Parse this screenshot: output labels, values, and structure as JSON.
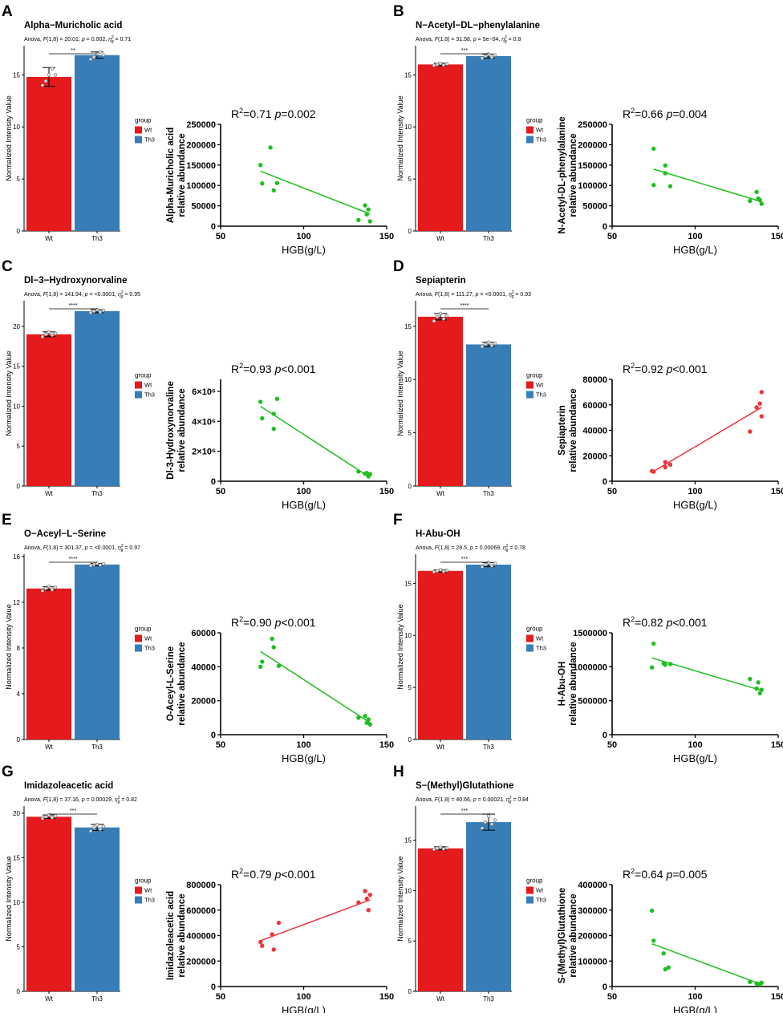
{
  "colors": {
    "wt": "#e41a1c",
    "th3": "#377eb8",
    "green": "#1fbf1f",
    "red": "#f0333d"
  },
  "legend": {
    "title": "group",
    "items": [
      "Wt",
      "Th3"
    ]
  },
  "ylabel": "Normalized Intensity Value",
  "xlabel_scatter": "HGB(g/L)",
  "chart_data": [
    {
      "panel": "A",
      "type": "bar",
      "title": "Alpha−Muricholic acid",
      "anova": "Anova, F(1,8) = 20.01, p = 0.002, η²g = 0.71",
      "anova_pre": "Anova, ",
      "anova_post": "(1,8) = 20.01, ",
      "anova_p": " = 0.002,  ",
      "anova_eta": " = 0.71",
      "categories": [
        "Wt",
        "Th3"
      ],
      "values": [
        14.8,
        16.9
      ],
      "errors": [
        0.9,
        0.3
      ],
      "sig": "**",
      "ylim": [
        0,
        17.8
      ],
      "yticks": [
        0,
        5,
        10,
        15
      ],
      "points": [
        [
          14.0,
          14.4,
          15.0,
          15.6,
          15.0
        ],
        [
          16.5,
          16.7,
          17.0,
          17.2,
          16.9
        ]
      ],
      "scatter": {
        "type": "scatter",
        "ylabel1": "Alpha-Muricholic acid",
        "ylabel2": "relative abundance",
        "r2_value": "=0.71",
        "p_value": "=0.002",
        "color": "#1fbf1f",
        "x": [
          74,
          75,
          80,
          82,
          84,
          133,
          137,
          138,
          139,
          140
        ],
        "y": [
          150000,
          105000,
          193000,
          88000,
          106000,
          15000,
          51000,
          29000,
          41000,
          12000
        ],
        "line": [
          [
            74,
            135000
          ],
          [
            140,
            30000
          ]
        ],
        "xlim": [
          50,
          150
        ],
        "xticks": [
          "50",
          "100",
          "150"
        ],
        "xtickvals": [
          50,
          100,
          150
        ],
        "ylim": [
          0,
          250000
        ],
        "yticks": [
          "0",
          "50000",
          "100000",
          "150000",
          "200000",
          "250000"
        ],
        "ytickvals": [
          0,
          50000,
          100000,
          150000,
          200000,
          250000
        ]
      }
    },
    {
      "panel": "B",
      "type": "bar",
      "title": "N−Acetyl−DL−phenylalanine",
      "anova": "Anova, F(1,8) = 31.58, p = 5e−04, η²g = 0.8",
      "anova_pre": "Anova, ",
      "anova_post": "(1,8) = 31.58, ",
      "anova_p": " = 5e−04,  ",
      "anova_eta": " = 0.8",
      "categories": [
        "Wt",
        "Th3"
      ],
      "values": [
        16.0,
        16.8
      ],
      "errors": [
        0.12,
        0.2
      ],
      "sig": "***",
      "ylim": [
        0,
        17.8
      ],
      "yticks": [
        0,
        5,
        10,
        15
      ],
      "points": [
        [
          15.9,
          16.0,
          16.1,
          15.95,
          16.05
        ],
        [
          16.6,
          16.8,
          17.0,
          16.7,
          16.9
        ]
      ],
      "scatter": {
        "type": "scatter",
        "ylabel1": "N-Acetyl-DL-phenylalanine",
        "ylabel2": "relative abundance",
        "r2_value": "=0.66",
        "p_value": "=0.004",
        "color": "#1fbf1f",
        "x": [
          75,
          75,
          82,
          82,
          85,
          133,
          137,
          138,
          139,
          140
        ],
        "y": [
          190000,
          101000,
          149000,
          130000,
          98000,
          62000,
          84000,
          68000,
          64000,
          55000
        ],
        "line": [
          [
            75,
            140000
          ],
          [
            140,
            60000
          ]
        ],
        "xlim": [
          50,
          150
        ],
        "xticks": [
          "50",
          "100",
          "150"
        ],
        "xtickvals": [
          50,
          100,
          150
        ],
        "ylim": [
          0,
          250000
        ],
        "yticks": [
          "0",
          "50000",
          "100000",
          "150000",
          "200000",
          "250000"
        ],
        "ytickvals": [
          0,
          50000,
          100000,
          150000,
          200000,
          250000
        ]
      }
    },
    {
      "panel": "C",
      "type": "bar",
      "title": "Dl−3−Hydroxynorvaline",
      "anova": "Anova, F(1,8) = 141.94, p = <0.0001, η²g = 0.95",
      "anova_pre": "Anova, ",
      "anova_post": "(1,8) = 141.94, ",
      "anova_p": " = <0.0001,  ",
      "anova_eta": " = 0.95",
      "categories": [
        "Wt",
        "Th3"
      ],
      "values": [
        19.0,
        21.9
      ],
      "errors": [
        0.3,
        0.2
      ],
      "sig": "****",
      "ylim": [
        0,
        23.2
      ],
      "yticks": [
        0,
        5,
        10,
        15,
        20
      ],
      "points": [
        [
          18.7,
          19.0,
          19.3,
          18.9,
          19.1
        ],
        [
          21.7,
          21.9,
          22.1,
          21.8,
          22.0
        ]
      ],
      "scatter": {
        "type": "scatter",
        "ylabel1": "Dl-3-Hydroxynorvaline",
        "ylabel2": "relative abundance",
        "r2_value": "=0.93",
        "p_value": "<0.001",
        "color": "#1fbf1f",
        "x": [
          74,
          75,
          82,
          82,
          84,
          133,
          137,
          138,
          139,
          140
        ],
        "y": [
          5300000,
          4200000,
          4500000,
          3500000,
          5500000,
          650000,
          500000,
          550000,
          320000,
          480000
        ],
        "line": [
          [
            74,
            5000000
          ],
          [
            140,
            250000
          ]
        ],
        "xlim": [
          50,
          150
        ],
        "xticks": [
          "50",
          "100",
          "150"
        ],
        "xtickvals": [
          50,
          100,
          150
        ],
        "ylim": [
          0,
          6800000
        ],
        "yticks": [
          "0",
          "2×10⁶",
          "4×10⁶",
          "6×10⁶"
        ],
        "ytickvals": [
          0,
          2000000,
          4000000,
          6000000
        ]
      }
    },
    {
      "panel": "D",
      "type": "bar",
      "title": "Sepiapterin",
      "anova": "Anova, F(1,8) = 111.27, p = <0.0001, η²g = 0.93",
      "anova_pre": "Anova, ",
      "anova_post": "(1,8) = 111.27, ",
      "anova_p": " = <0.0001,  ",
      "anova_eta": " = 0.93",
      "categories": [
        "Wt",
        "Th3"
      ],
      "values": [
        15.9,
        13.3
      ],
      "errors": [
        0.3,
        0.2
      ],
      "sig": "****",
      "ylim": [
        0,
        17.4
      ],
      "yticks": [
        0,
        5,
        10,
        15
      ],
      "points": [
        [
          15.5,
          15.9,
          16.2,
          15.7,
          16.0
        ],
        [
          13.1,
          13.3,
          13.5,
          13.2,
          13.4
        ]
      ],
      "scatter": {
        "type": "scatter",
        "ylabel1": "Sepiapterin",
        "ylabel2": "relative abundance",
        "r2_value": "=0.92",
        "p_value": "<0.001",
        "color": "#f0333d",
        "x": [
          74,
          75,
          82,
          82,
          85,
          133,
          137,
          139,
          140,
          140
        ],
        "y": [
          8000,
          7500,
          11000,
          15000,
          13000,
          39000,
          58000,
          61000,
          70000,
          51000
        ],
        "line": [
          [
            74,
            7000
          ],
          [
            140,
            58000
          ]
        ],
        "xlim": [
          50,
          150
        ],
        "xticks": [
          "50",
          "100",
          "150"
        ],
        "xtickvals": [
          50,
          100,
          150
        ],
        "ylim": [
          0,
          80000
        ],
        "yticks": [
          "0",
          "20000",
          "40000",
          "60000",
          "80000"
        ],
        "ytickvals": [
          0,
          20000,
          40000,
          60000,
          80000
        ]
      }
    },
    {
      "panel": "E",
      "type": "bar",
      "title": "O−Aceyl−L−Serine",
      "anova": "Anova, F(1,8) = 301.37, p = <0.0001, η²g = 0.97",
      "anova_pre": "Anova, ",
      "anova_post": "(1,8) = 301.37, ",
      "anova_p": " = <0.0001,  ",
      "anova_eta": " = 0.97",
      "categories": [
        "Wt",
        "Th3"
      ],
      "values": [
        13.2,
        15.3
      ],
      "errors": [
        0.15,
        0.1
      ],
      "sig": "****",
      "ylim": [
        0,
        16.2
      ],
      "yticks": [
        0,
        4,
        8,
        12,
        16
      ],
      "points": [
        [
          13.0,
          13.2,
          13.4,
          13.1,
          13.3
        ],
        [
          15.2,
          15.3,
          15.4,
          15.25,
          15.35
        ]
      ],
      "scatter": {
        "type": "scatter",
        "ylabel1": "O-Aceyl-L-Serine",
        "ylabel2": "relative abundance",
        "r2_value": "=0.90",
        "p_value": "<0.001",
        "color": "#1fbf1f",
        "x": [
          74,
          75,
          81,
          82,
          85,
          133,
          137,
          138,
          139,
          140
        ],
        "y": [
          40000,
          43000,
          56500,
          51500,
          40500,
          10000,
          11000,
          7000,
          9000,
          6000
        ],
        "line": [
          [
            74,
            49000
          ],
          [
            140,
            7000
          ]
        ],
        "xlim": [
          50,
          150
        ],
        "xticks": [
          "50",
          "100",
          "150"
        ],
        "xtickvals": [
          50,
          100,
          150
        ],
        "ylim": [
          0,
          60000
        ],
        "yticks": [
          "0",
          "20000",
          "40000",
          "60000"
        ],
        "ytickvals": [
          0,
          20000,
          40000,
          60000
        ]
      }
    },
    {
      "panel": "F",
      "type": "bar",
      "title": "H-Abu-OH",
      "anova": "Anova, F(1,8) = 28.5, p = 0.00069, η²g = 0.78",
      "anova_pre": "Anova, ",
      "anova_post": "(1,8) = 28.5, ",
      "anova_p": " = 0.00069,  ",
      "anova_eta": " = 0.78",
      "categories": [
        "Wt",
        "Th3"
      ],
      "values": [
        16.2,
        16.8
      ],
      "errors": [
        0.1,
        0.2
      ],
      "sig": "***",
      "ylim": [
        0,
        17.8
      ],
      "yticks": [
        0,
        5,
        10,
        15
      ],
      "points": [
        [
          16.1,
          16.2,
          16.3,
          16.15,
          16.25
        ],
        [
          16.6,
          16.8,
          17.0,
          16.7,
          16.9
        ]
      ],
      "scatter": {
        "type": "scatter",
        "ylabel1": "H-Abu-OH",
        "ylabel2": "relative abundance",
        "r2_value": "=0.82",
        "p_value": "<0.001",
        "color": "#1fbf1f",
        "x": [
          74,
          75,
          81,
          82,
          85,
          133,
          137,
          138,
          139,
          140
        ],
        "y": [
          990000,
          1340000,
          1050000,
          1030000,
          1040000,
          820000,
          680000,
          770000,
          610000,
          660000
        ],
        "line": [
          [
            74,
            1130000
          ],
          [
            140,
            650000
          ]
        ],
        "xlim": [
          50,
          150
        ],
        "xticks": [
          "50",
          "100",
          "150"
        ],
        "xtickvals": [
          50,
          100,
          150
        ],
        "ylim": [
          0,
          1500000
        ],
        "yticks": [
          "0",
          "500000",
          "1000000",
          "1500000"
        ],
        "ytickvals": [
          0,
          500000,
          1000000,
          1500000
        ]
      }
    },
    {
      "panel": "G",
      "type": "bar",
      "title": "Imidazoleacetic acid",
      "anova": "Anova, F(1,8) = 37.16, p = 0.00029, η²g = 0.82",
      "anova_pre": "Anova, ",
      "anova_post": "(1,8) = 37.16, ",
      "anova_p": " = 0.00029,  ",
      "anova_eta": " = 0.82",
      "categories": [
        "Wt",
        "Th3"
      ],
      "values": [
        19.6,
        18.4
      ],
      "errors": [
        0.2,
        0.35
      ],
      "sig": "***",
      "ylim": [
        0,
        20.8
      ],
      "yticks": [
        0,
        5,
        10,
        15,
        20
      ],
      "points": [
        [
          19.4,
          19.6,
          19.8,
          19.5,
          19.7
        ],
        [
          18.0,
          18.4,
          18.7,
          18.2,
          18.5
        ]
      ],
      "scatter": {
        "type": "scatter",
        "ylabel1": "Imidazoleacetic acid",
        "ylabel2": "relative abundance",
        "r2_value": "=0.79",
        "p_value": "<0.001",
        "color": "#f0333d",
        "x": [
          74,
          75,
          81,
          82,
          85,
          133,
          137,
          138,
          139,
          140
        ],
        "y": [
          350000,
          320000,
          410000,
          290000,
          500000,
          660000,
          750000,
          690000,
          600000,
          720000
        ],
        "line": [
          [
            74,
            360000
          ],
          [
            140,
            680000
          ]
        ],
        "xlim": [
          50,
          150
        ],
        "xticks": [
          "50",
          "100",
          "150"
        ],
        "xtickvals": [
          50,
          100,
          150
        ],
        "ylim": [
          0,
          800000
        ],
        "yticks": [
          "0",
          "200000",
          "400000",
          "600000",
          "800000"
        ],
        "ytickvals": [
          0,
          200000,
          400000,
          600000,
          800000
        ]
      }
    },
    {
      "panel": "H",
      "type": "bar",
      "title": "S−(Methyl)Glutathione",
      "anova": "Anova, F(1,8) = 40.66, p = 0.00021, η²g = 0.84",
      "anova_pre": "Anova, ",
      "anova_post": "(1,8) = 40.66, ",
      "anova_p": " = 0.00021,  ",
      "anova_eta": " = 0.84",
      "categories": [
        "Wt",
        "Th3"
      ],
      "values": [
        14.2,
        16.8
      ],
      "errors": [
        0.15,
        0.8
      ],
      "sig": "***",
      "ylim": [
        0,
        18.4
      ],
      "yticks": [
        0,
        5,
        10,
        15
      ],
      "points": [
        [
          14.1,
          14.2,
          14.3,
          14.15,
          14.25
        ],
        [
          16.2,
          16.8,
          17.4,
          16.6,
          17.0
        ]
      ],
      "scatter": {
        "type": "scatter",
        "ylabel1": "S-(Methyl)Glutathione",
        "ylabel2": "relative abundance",
        "r2_value": "=0.64",
        "p_value": "=0.005",
        "color": "#1fbf1f",
        "x": [
          74,
          75,
          81,
          82,
          84,
          133,
          137,
          138,
          139,
          140
        ],
        "y": [
          298000,
          180000,
          130000,
          68000,
          75000,
          18000,
          12000,
          10000,
          8000,
          15000
        ],
        "line": [
          [
            74,
            168000
          ],
          [
            140,
            8000
          ]
        ],
        "xlim": [
          50,
          150
        ],
        "xticks": [
          "50",
          "100",
          "150"
        ],
        "xtickvals": [
          50,
          100,
          150
        ],
        "ylim": [
          0,
          400000
        ],
        "yticks": [
          "0",
          "100000",
          "200000",
          "300000",
          "400000"
        ],
        "ytickvals": [
          0,
          100000,
          200000,
          300000,
          400000
        ]
      }
    }
  ]
}
